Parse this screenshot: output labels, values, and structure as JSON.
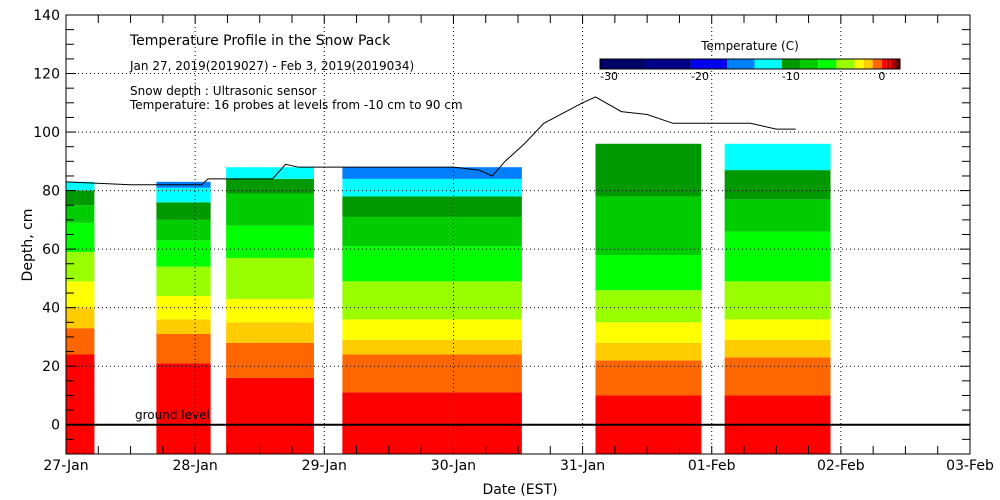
{
  "chart_data": {
    "type": "heatmap",
    "title": "Temperature Profile in the Snow Pack",
    "subtitle": "Jan 27, 2019(2019027) - Feb  3, 2019(2019034)",
    "notes": [
      "Snow depth : Ultrasonic sensor",
      "Temperature: 16 probes at levels from -10 cm to 90 cm"
    ],
    "xlabel": "Date (EST)",
    "ylabel": "Depth, cm",
    "xlim_days": [
      0,
      7
    ],
    "x_ticks": [
      "27-Jan",
      "28-Jan",
      "29-Jan",
      "30-Jan",
      "31-Jan",
      "01-Feb",
      "02-Feb",
      "03-Feb"
    ],
    "ylim": [
      -10,
      140
    ],
    "y_ticks": [
      0,
      20,
      40,
      60,
      80,
      100,
      120,
      140
    ],
    "grid": "dotted",
    "ground_label": "ground level",
    "ground_level_cm": 0,
    "colorbar": {
      "title": "Temperature (C)",
      "placement": "top-right",
      "range": [
        -31,
        2
      ],
      "tick_labels": [
        "-30",
        "-20",
        "-10",
        "0"
      ],
      "tick_values": [
        -30,
        -20,
        -10,
        0
      ],
      "colors": [
        "#000066",
        "#00008b",
        "#0000ee",
        "#0080ff",
        "#00ffff",
        "#009900",
        "#00cc00",
        "#00ff00",
        "#99ff00",
        "#ffff00",
        "#ffcc00",
        "#ff6600",
        "#ff0000",
        "#dd0000",
        "#aa0000",
        "#660000"
      ],
      "bounds": [
        -31,
        -26,
        -21,
        -17,
        -14,
        -11,
        -9,
        -7,
        -5,
        -3,
        -2,
        -1,
        0,
        0.5,
        1,
        1.5,
        2
      ]
    },
    "data_segments_days": [
      [
        0,
        0.22
      ],
      [
        0.7,
        1.12
      ],
      [
        1.24,
        1.92
      ],
      [
        2.14,
        3.53
      ],
      [
        4.1,
        4.92
      ],
      [
        5.1,
        5.92
      ]
    ],
    "temperature_bands": [
      {
        "segment": 0,
        "layers": [
          {
            "color": "#ff0000",
            "top": 24
          },
          {
            "color": "#ff6600",
            "top": 33
          },
          {
            "color": "#ffcc00",
            "top": 40
          },
          {
            "color": "#ffff00",
            "top": 49
          },
          {
            "color": "#99ff00",
            "top": 59
          },
          {
            "color": "#00ff00",
            "top": 69
          },
          {
            "color": "#00cc00",
            "top": 75
          },
          {
            "color": "#009900",
            "top": 80
          },
          {
            "color": "#00ffff",
            "top": 83
          }
        ]
      },
      {
        "segment": 1,
        "layers": [
          {
            "color": "#ff0000",
            "top": 21
          },
          {
            "color": "#ff6600",
            "top": 31
          },
          {
            "color": "#ffcc00",
            "top": 36
          },
          {
            "color": "#ffff00",
            "top": 44
          },
          {
            "color": "#99ff00",
            "top": 54
          },
          {
            "color": "#00ff00",
            "top": 63
          },
          {
            "color": "#00cc00",
            "top": 70
          },
          {
            "color": "#009900",
            "top": 76
          },
          {
            "color": "#00ffff",
            "top": 81
          },
          {
            "color": "#0080ff",
            "top": 83
          }
        ]
      },
      {
        "segment": 2,
        "layers": [
          {
            "color": "#ff0000",
            "top": 16
          },
          {
            "color": "#ff6600",
            "top": 28
          },
          {
            "color": "#ffcc00",
            "top": 35
          },
          {
            "color": "#ffff00",
            "top": 43
          },
          {
            "color": "#99ff00",
            "top": 57
          },
          {
            "color": "#00ff00",
            "top": 68
          },
          {
            "color": "#00cc00",
            "top": 79
          },
          {
            "color": "#009900",
            "top": 84
          },
          {
            "color": "#00ffff",
            "top": 88
          }
        ]
      },
      {
        "segment": 3,
        "layers": [
          {
            "color": "#ff0000",
            "top": 11
          },
          {
            "color": "#ff6600",
            "top": 24
          },
          {
            "color": "#ffcc00",
            "top": 29
          },
          {
            "color": "#ffff00",
            "top": 36
          },
          {
            "color": "#99ff00",
            "top": 49
          },
          {
            "color": "#00ff00",
            "top": 61
          },
          {
            "color": "#00cc00",
            "top": 71
          },
          {
            "color": "#009900",
            "top": 78
          },
          {
            "color": "#00ffff",
            "top": 84
          },
          {
            "color": "#0080ff",
            "top": 88
          }
        ]
      },
      {
        "segment": 4,
        "layers": [
          {
            "color": "#ff0000",
            "top": 10
          },
          {
            "color": "#ff6600",
            "top": 22
          },
          {
            "color": "#ffcc00",
            "top": 28
          },
          {
            "color": "#ffff00",
            "top": 35
          },
          {
            "color": "#99ff00",
            "top": 46
          },
          {
            "color": "#00ff00",
            "top": 58
          },
          {
            "color": "#00cc00",
            "top": 78
          },
          {
            "color": "#009900",
            "top": 96
          }
        ]
      },
      {
        "segment": 5,
        "layers": [
          {
            "color": "#ff0000",
            "top": 10
          },
          {
            "color": "#ff6600",
            "top": 23
          },
          {
            "color": "#ffcc00",
            "top": 29
          },
          {
            "color": "#ffff00",
            "top": 36
          },
          {
            "color": "#99ff00",
            "top": 49
          },
          {
            "color": "#00ff00",
            "top": 66
          },
          {
            "color": "#00cc00",
            "top": 77
          },
          {
            "color": "#009900",
            "top": 87
          },
          {
            "color": "#00ffff",
            "top": 96
          }
        ]
      }
    ],
    "snow_depth_series": {
      "name": "Snow depth",
      "x_days": [
        0,
        0.5,
        1.05,
        1.1,
        1.2,
        1.6,
        1.7,
        1.8,
        2.0,
        2.5,
        3.0,
        3.2,
        3.3,
        3.4,
        3.55,
        3.7,
        4.0,
        4.1,
        4.3,
        4.5,
        4.7,
        5.0,
        5.3,
        5.5,
        5.65
      ],
      "y_cm": [
        83,
        82,
        82,
        84,
        84,
        84,
        89,
        88,
        88,
        88,
        88,
        87,
        85,
        90,
        96,
        103,
        110,
        112,
        107,
        106,
        103,
        103,
        103,
        101,
        101
      ]
    }
  }
}
